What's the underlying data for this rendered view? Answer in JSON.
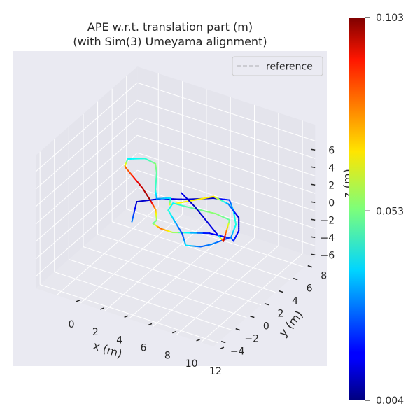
{
  "chart_data": {
    "type": "line",
    "projection": "3d",
    "title": "APE w.r.t. translation part (m)",
    "subtitle": "(with Sim(3) Umeyama alignment)",
    "xlabel": "x (m)",
    "ylabel": "y (m)",
    "zlabel": "z (m)",
    "xlim": [
      -1.75,
      13.05
    ],
    "ylim": [
      -4.6,
      9.5
    ],
    "zlim": [
      -7.35,
      7.85
    ],
    "xticks": [
      0,
      2,
      4,
      6,
      8,
      10,
      12
    ],
    "yticks": [
      -4,
      -2,
      0,
      2,
      4,
      6,
      8
    ],
    "zticks": [
      -6,
      -4,
      -2,
      0,
      2,
      4,
      6
    ],
    "grid": true,
    "legend": {
      "placement": "top-right",
      "entries": [
        {
          "label": "reference",
          "style": "dashed",
          "color": "#808080"
        }
      ]
    },
    "colorbar": {
      "colormap": "jet",
      "min": 0.004,
      "max": 0.103,
      "ticks": [
        "0.004",
        "0.053",
        "0.103"
      ]
    },
    "trajectory": {
      "x": [
        4.4,
        3.3,
        4.6,
        6.1,
        7.7,
        8.8,
        9.8,
        10.9,
        11.5,
        11.9,
        11.5,
        10.6,
        9.0,
        7.6,
        5.5,
        5.1,
        4.3,
        3.6,
        2.5,
        1.8,
        0.8,
        -0.2,
        0.1,
        0.3,
        2.7,
        4.0,
        5.0,
        5.8,
        5.8,
        6.6,
        7.6,
        9.9,
        11.4,
        10.8,
        10.3,
        9.3,
        8.3,
        5.8,
        5.6,
        6.7,
        8.9,
        10.2,
        11.3,
        10.4,
        7.2,
        5.4
      ],
      "y": [
        -1.5,
        1.0,
        2.3,
        3.1,
        4.3,
        4.7,
        3.6,
        2.1,
        0.4,
        0.1,
        1.5,
        3.0,
        4.2,
        4.5,
        1.9,
        2.7,
        2.1,
        3.1,
        5.1,
        6.1,
        6.3,
        5.6,
        4.7,
        4.5,
        2.8,
        1.7,
        0.8,
        -0.4,
        -0.9,
        -1.2,
        -1.2,
        0.1,
        0.3,
        -1.1,
        -1.8,
        -2.2,
        -1.0,
        1.2,
        2.2,
        2.3,
        2.6,
        2.4,
        -0.3,
        0.3,
        2.6,
        3.7
      ],
      "z": [
        0.8,
        0.8,
        0.8,
        0.8,
        0.8,
        0.8,
        0.8,
        0.8,
        0.8,
        0.8,
        0.8,
        0.8,
        0.8,
        0.8,
        0.8,
        0.8,
        0.8,
        0.8,
        0.8,
        0.8,
        0.8,
        0.8,
        0.8,
        0.8,
        0.8,
        0.8,
        0.8,
        0.8,
        0.8,
        0.8,
        0.8,
        0.8,
        0.8,
        0.8,
        0.8,
        0.8,
        0.8,
        0.8,
        0.8,
        0.8,
        0.8,
        0.8,
        0.8,
        0.8,
        0.8,
        0.8
      ],
      "ape": [
        0.03,
        0.01,
        0.015,
        0.012,
        0.01,
        0.02,
        0.04,
        0.045,
        0.03,
        0.02,
        0.015,
        0.01,
        0.03,
        0.068,
        0.065,
        0.04,
        0.03,
        0.045,
        0.05,
        0.055,
        0.045,
        0.04,
        0.07,
        0.08,
        0.097,
        0.1,
        0.075,
        0.055,
        0.05,
        0.082,
        0.06,
        0.015,
        0.02,
        0.03,
        0.025,
        0.04,
        0.02,
        0.045,
        0.04,
        0.05,
        0.055,
        0.05,
        0.1,
        0.015,
        0.01,
        0.015
      ]
    },
    "colors": {
      "axes_bg": "#eaeaf2",
      "pane": "#e4e4ec",
      "floor": "#e7e7ee",
      "grid": "#ffffff"
    }
  }
}
